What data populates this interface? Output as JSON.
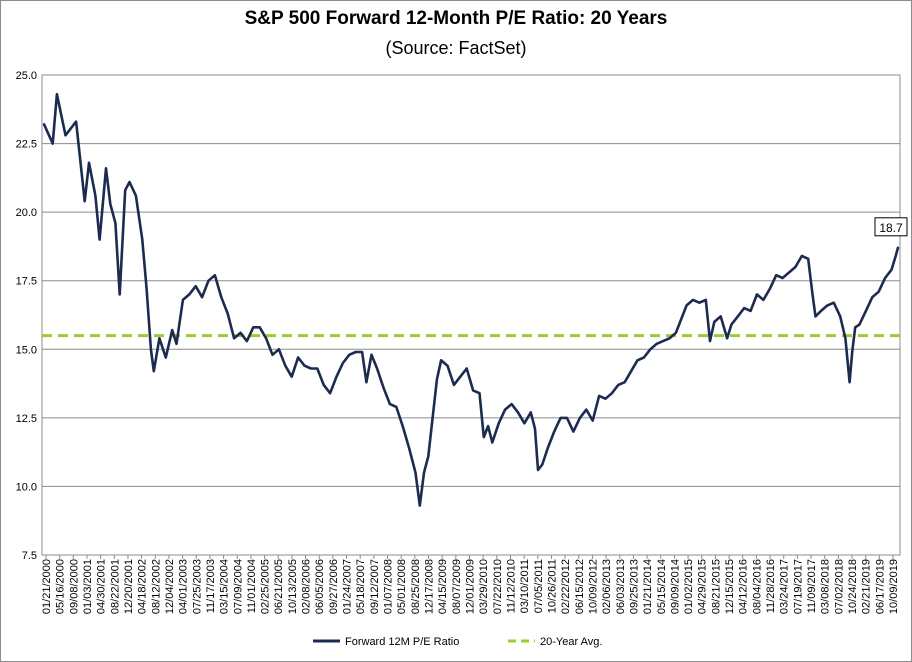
{
  "chart_data": {
    "type": "line",
    "title": "S&P 500 Forward 12-Month P/E Ratio: 20 Years",
    "subtitle": "(Source: FactSet)",
    "ylim": [
      7.5,
      25.0
    ],
    "y_ticks": [
      "25.0",
      "22.5",
      "20.0",
      "17.5",
      "15.0",
      "12.5",
      "10.0",
      "7.5"
    ],
    "x_tick_labels": [
      "01/21/2000",
      "05/16/2000",
      "09/08/2000",
      "01/03/2001",
      "04/30/2001",
      "08/22/2001",
      "12/20/2001",
      "04/18/2002",
      "08/12/2002",
      "12/04/2002",
      "04/01/2003",
      "07/25/2003",
      "11/17/2003",
      "03/15/2004",
      "07/09/2004",
      "11/01/2004",
      "02/25/2005",
      "06/21/2005",
      "10/13/2005",
      "02/08/2006",
      "06/05/2006",
      "09/27/2006",
      "01/24/2007",
      "05/18/2007",
      "09/12/2007",
      "01/07/2008",
      "05/01/2008",
      "08/25/2008",
      "12/17/2008",
      "04/15/2009",
      "08/07/2009",
      "12/01/2009",
      "03/29/2010",
      "07/22/2010",
      "11/12/2010",
      "03/10/2011",
      "07/05/2011",
      "10/26/2011",
      "02/22/2012",
      "06/15/2012",
      "10/09/2012",
      "02/06/2013",
      "06/03/2013",
      "09/25/2013",
      "01/21/2014",
      "05/15/2014",
      "09/09/2014",
      "01/02/2015",
      "04/29/2015",
      "08/21/2015",
      "12/15/2015",
      "04/12/2016",
      "08/04/2016",
      "11/28/2016",
      "03/24/2017",
      "07/19/2017",
      "11/09/2017",
      "03/08/2018",
      "07/02/2018",
      "10/24/2018",
      "02/21/2019",
      "06/17/2019",
      "10/09/2019"
    ],
    "grid": true,
    "legend_position": "bottom",
    "series": [
      {
        "name": "Forward 12M P/E Ratio",
        "color": "#1c2b4f",
        "x": [
          2000.05,
          2000.25,
          2000.35,
          2000.55,
          2000.8,
          2001.0,
          2001.1,
          2001.25,
          2001.35,
          2001.5,
          2001.6,
          2001.72,
          2001.82,
          2001.95,
          2002.05,
          2002.2,
          2002.35,
          2002.45,
          2002.55,
          2002.62,
          2002.75,
          2002.9,
          2003.05,
          2003.15,
          2003.3,
          2003.45,
          2003.6,
          2003.75,
          2003.9,
          2004.05,
          2004.2,
          2004.35,
          2004.5,
          2004.65,
          2004.8,
          2004.95,
          2005.1,
          2005.25,
          2005.4,
          2005.55,
          2005.7,
          2005.85,
          2006.0,
          2006.15,
          2006.3,
          2006.45,
          2006.6,
          2006.75,
          2006.9,
          2007.05,
          2007.2,
          2007.35,
          2007.5,
          2007.6,
          2007.72,
          2007.85,
          2008.0,
          2008.15,
          2008.3,
          2008.45,
          2008.6,
          2008.75,
          2008.85,
          2008.95,
          2009.05,
          2009.15,
          2009.25,
          2009.35,
          2009.5,
          2009.65,
          2009.8,
          2009.95,
          2010.1,
          2010.25,
          2010.35,
          2010.45,
          2010.55,
          2010.7,
          2010.85,
          2011.0,
          2011.15,
          2011.3,
          2011.45,
          2011.55,
          2011.62,
          2011.72,
          2011.85,
          2012.0,
          2012.15,
          2012.3,
          2012.45,
          2012.6,
          2012.75,
          2012.9,
          2013.05,
          2013.2,
          2013.35,
          2013.5,
          2013.65,
          2013.8,
          2013.95,
          2014.1,
          2014.25,
          2014.4,
          2014.55,
          2014.7,
          2014.85,
          2015.0,
          2015.1,
          2015.25,
          2015.4,
          2015.55,
          2015.65,
          2015.75,
          2015.9,
          2016.05,
          2016.15,
          2016.3,
          2016.45,
          2016.6,
          2016.75,
          2016.9,
          2017.05,
          2017.2,
          2017.35,
          2017.5,
          2017.65,
          2017.8,
          2017.95,
          2018.05,
          2018.12,
          2018.25,
          2018.4,
          2018.55,
          2018.7,
          2018.82,
          2018.92,
          2018.98,
          2019.05,
          2019.15,
          2019.3,
          2019.45,
          2019.6,
          2019.75,
          2019.9,
          2020.0,
          2020.05
        ],
        "values": [
          23.2,
          22.5,
          24.3,
          22.8,
          23.3,
          20.4,
          21.8,
          20.6,
          19.0,
          21.6,
          20.3,
          19.6,
          17.0,
          20.8,
          21.1,
          20.6,
          19.0,
          17.2,
          15.0,
          14.2,
          15.4,
          14.7,
          15.7,
          15.2,
          16.8,
          17.0,
          17.3,
          16.9,
          17.5,
          17.7,
          16.9,
          16.3,
          15.4,
          15.6,
          15.3,
          15.8,
          15.8,
          15.4,
          14.8,
          15.0,
          14.4,
          14.0,
          14.7,
          14.4,
          14.3,
          14.3,
          13.7,
          13.4,
          14.0,
          14.5,
          14.8,
          14.9,
          14.9,
          13.8,
          14.8,
          14.3,
          13.6,
          13.0,
          12.9,
          12.2,
          11.4,
          10.5,
          9.3,
          10.5,
          11.1,
          12.5,
          13.9,
          14.6,
          14.4,
          13.7,
          14.0,
          14.3,
          13.5,
          13.4,
          11.8,
          12.2,
          11.6,
          12.3,
          12.8,
          13.0,
          12.7,
          12.3,
          12.7,
          12.1,
          10.6,
          10.8,
          11.4,
          12.0,
          12.5,
          12.5,
          12.0,
          12.5,
          12.8,
          12.4,
          13.3,
          13.2,
          13.4,
          13.7,
          13.8,
          14.2,
          14.6,
          14.7,
          15.0,
          15.2,
          15.3,
          15.4,
          15.6,
          16.2,
          16.6,
          16.8,
          16.7,
          16.8,
          15.3,
          16.0,
          16.2,
          15.4,
          15.9,
          16.2,
          16.5,
          16.4,
          17.0,
          16.8,
          17.2,
          17.7,
          17.6,
          17.8,
          18.0,
          18.4,
          18.3,
          17.0,
          16.2,
          16.4,
          16.6,
          16.7,
          16.2,
          15.4,
          13.8,
          14.9,
          15.8,
          15.9,
          16.4,
          16.9,
          17.1,
          17.6,
          17.9,
          18.4,
          18.7
        ]
      },
      {
        "name": "20-Year Avg.",
        "color": "#9acd32",
        "constant": 15.5
      }
    ],
    "annotations": [
      {
        "label": "18.7"
      }
    ]
  }
}
